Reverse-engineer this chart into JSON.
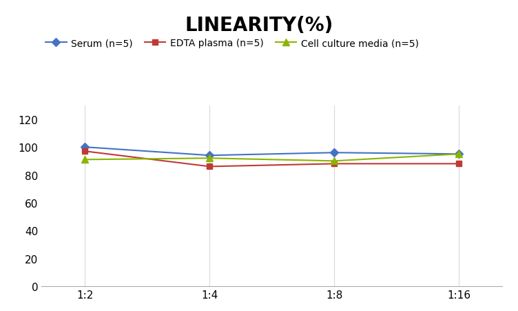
{
  "title": "LINEARITY(%)",
  "x_labels": [
    "1:2",
    "1:4",
    "1:8",
    "1:16"
  ],
  "x_positions": [
    0,
    1,
    2,
    3
  ],
  "series": [
    {
      "label": "Serum (n=5)",
      "values": [
        100,
        94,
        96,
        95
      ],
      "color": "#4472C4",
      "marker": "D",
      "linewidth": 1.5,
      "markersize": 6
    },
    {
      "label": "EDTA plasma (n=5)",
      "values": [
        97,
        86,
        88,
        88
      ],
      "color": "#BE3A34",
      "marker": "s",
      "linewidth": 1.5,
      "markersize": 6
    },
    {
      "label": "Cell culture media (n=5)",
      "values": [
        91,
        92,
        90,
        95
      ],
      "color": "#8CB400",
      "marker": "^",
      "linewidth": 1.5,
      "markersize": 7
    }
  ],
  "ylim": [
    0,
    130
  ],
  "yticks": [
    0,
    20,
    40,
    60,
    80,
    100,
    120
  ],
  "grid_color": "#D9D9D9",
  "background_color": "#FFFFFF",
  "title_fontsize": 20,
  "title_fontweight": "bold",
  "legend_fontsize": 10,
  "tick_fontsize": 11
}
